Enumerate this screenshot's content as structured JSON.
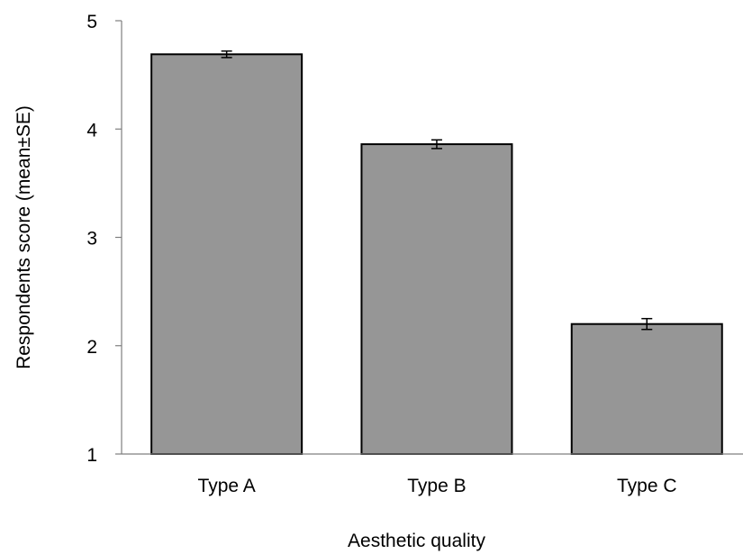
{
  "chart_data": {
    "type": "bar",
    "categories": [
      "Type A",
      "Type B",
      "Type C"
    ],
    "values": [
      4.69,
      3.86,
      2.2
    ],
    "errors": [
      0.03,
      0.04,
      0.05
    ],
    "xlabel": "Aesthetic quality",
    "ylabel": "Respondents score (mean±SE)",
    "ylim": [
      1,
      5
    ],
    "yticks": [
      "1",
      "2",
      "3",
      "4",
      "5"
    ],
    "grid": false,
    "legend": "none",
    "bar_color": "#969696",
    "bar_edge_color": "#000000"
  }
}
